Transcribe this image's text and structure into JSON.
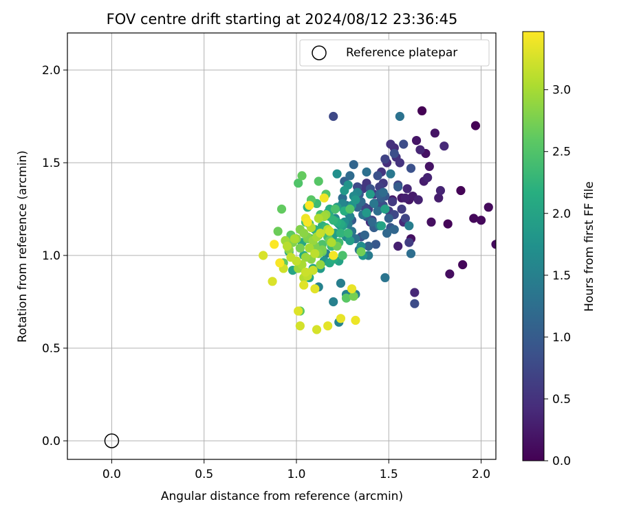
{
  "chart_data": {
    "type": "scatter",
    "title": "FOV centre drift starting at 2024/08/12 23:36:45",
    "xlabel": "Angular distance from reference (arcmin)",
    "ylabel": "Rotation from reference (arcmin)",
    "xlim": [
      -0.24,
      2.08
    ],
    "ylim": [
      -0.1,
      2.2
    ],
    "xticks": [
      0.0,
      0.5,
      1.0,
      1.5,
      2.0
    ],
    "xtick_labels": [
      "0.0",
      "0.5",
      "1.0",
      "1.5",
      "2.0"
    ],
    "yticks": [
      0.0,
      0.5,
      1.0,
      1.5,
      2.0
    ],
    "ytick_labels": [
      "0.0",
      "0.5",
      "1.0",
      "1.5",
      "2.0"
    ],
    "grid": true,
    "legend": {
      "placement": "upper-right",
      "entries": [
        "Reference platepar"
      ]
    },
    "reference_point": {
      "name": "Reference platepar",
      "x": 0.0,
      "y": 0.0,
      "marker": "open-circle"
    },
    "colorbar": {
      "label": "Hours from first FF file",
      "range": [
        0.0,
        3.47
      ],
      "ticks": [
        0.0,
        0.5,
        1.0,
        1.5,
        2.0,
        2.5,
        3.0
      ],
      "tick_labels": [
        "0.0",
        "0.5",
        "1.0",
        "1.5",
        "2.0",
        "2.5",
        "3.0"
      ],
      "colormap": "viridis"
    },
    "series": [
      {
        "x": [
          1.68,
          1.97,
          1.89,
          1.82,
          1.9,
          1.96,
          2.0,
          2.04,
          2.08,
          1.83,
          1.73,
          1.62,
          1.7,
          1.72,
          1.75,
          1.65,
          1.61,
          1.57,
          1.52,
          1.63,
          1.69,
          1.77,
          1.59,
          1.55,
          1.66,
          1.71,
          1.78,
          1.67,
          1.6,
          1.64,
          1.8,
          1.58,
          1.53,
          1.49,
          1.44,
          1.4,
          1.51,
          1.54,
          1.56,
          1.46,
          1.42,
          1.38,
          1.36,
          1.47,
          1.52,
          1.57,
          1.61,
          1.5,
          1.45,
          1.41,
          1.39,
          1.48,
          1.55,
          1.59,
          1.43,
          1.37,
          1.53,
          1.2,
          1.33,
          1.64,
          1.58,
          1.47,
          1.53,
          1.35,
          1.62,
          1.44,
          1.4,
          1.36,
          1.32,
          1.48,
          1.51,
          1.43,
          1.38,
          1.34,
          1.3,
          1.46,
          1.55,
          1.42,
          1.28,
          1.39,
          1.5,
          1.26,
          1.45,
          1.37,
          1.31,
          1.53,
          1.33,
          1.49,
          1.41,
          1.35,
          1.29,
          1.47,
          1.25,
          1.62,
          1.44,
          1.38,
          1.32,
          1.56,
          1.27,
          1.48,
          1.36,
          1.3,
          1.42,
          1.51,
          1.34,
          1.39,
          1.45,
          1.28,
          1.61,
          1.24,
          1.32,
          1.2,
          1.16,
          1.12,
          1.27,
          1.23,
          1.33,
          1.29,
          1.25,
          1.21,
          1.17,
          1.31,
          1.27,
          1.23,
          1.19,
          1.35,
          1.26,
          1.22,
          1.18,
          1.14,
          1.3,
          1.36,
          1.28,
          1.24,
          1.2,
          1.15,
          1.32,
          1.38,
          1.26,
          1.22,
          1.13,
          1.4,
          1.29,
          1.21,
          1.19,
          1.25,
          1.48,
          1.12,
          1.23,
          1.46,
          0.98,
          1.09,
          1.03,
          0.96,
          1.07,
          1.18,
          1.24,
          1.18,
          1.04,
          1.11,
          1.2,
          1.26,
          1.22,
          1.18,
          1.14,
          1.1,
          1.06,
          1.24,
          1.2,
          1.16,
          1.12,
          1.08,
          1.28,
          1.19,
          1.15,
          1.11,
          1.07,
          1.23,
          1.17,
          1.13,
          1.09,
          1.05,
          1.21,
          1.25,
          1.14,
          1.1,
          1.01,
          1.29,
          1.16,
          1.12,
          1.08,
          1.27,
          1.02,
          0.97,
          0.93,
          0.92,
          1.03,
          1.14,
          1.18,
          0.9,
          1.06,
          1.22,
          1.35,
          1.31,
          1.02,
          1.14,
          1.1,
          1.06,
          1.02,
          0.98,
          1.12,
          1.08,
          1.04,
          1.0,
          0.96,
          1.16,
          1.13,
          1.09,
          1.05,
          1.01,
          0.94,
          1.15,
          1.11,
          1.07,
          1.03,
          0.99,
          1.19,
          1.12,
          1.08,
          1.04,
          0.95,
          1.17,
          1.1,
          1.06,
          1.0,
          0.97,
          1.13,
          1.09,
          1.05,
          0.93,
          1.18,
          1.02,
          1.11,
          0.82,
          0.87,
          1.01,
          1.04,
          1.1,
          1.17,
          1.24,
          1.3,
          1.32,
          1.05,
          1.15,
          1.2,
          1.06,
          0.91,
          0.88,
          1.07
        ]
      }
    ],
    "notes": "Each point is colored by hours from first FF file (viridis); color order follows point order in groups."
  }
}
